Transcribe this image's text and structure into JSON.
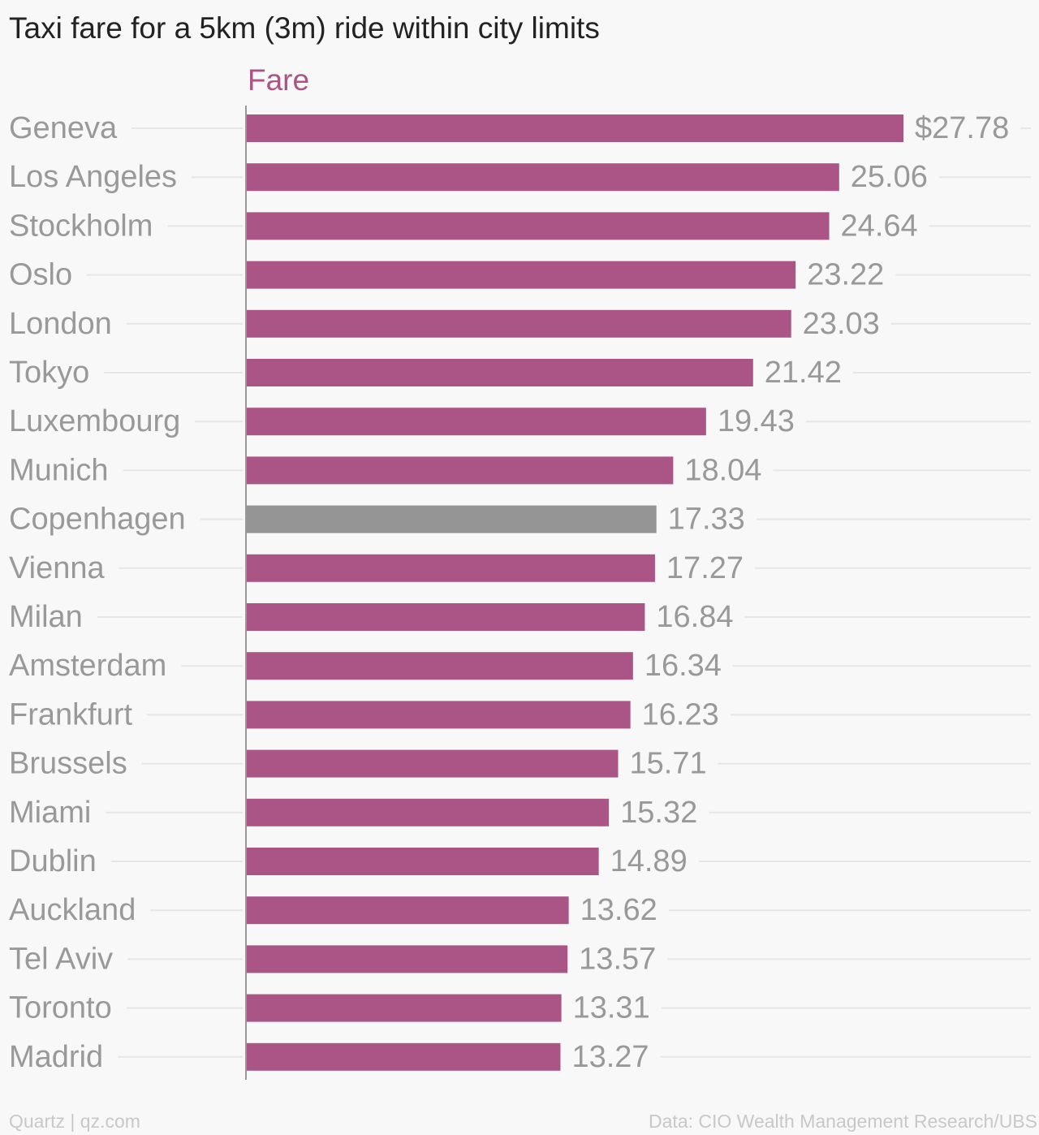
{
  "header": {
    "title": "Taxi fare for a 5km (3m) ride within city limits",
    "series_label": "Fare"
  },
  "footer": {
    "source_left": "Quartz | qz.com",
    "source_right": "Data: CIO Wealth Management Research/UBS"
  },
  "colors": {
    "bar": "#aa5585",
    "highlight_bar": "#959595",
    "label": "#999999",
    "title": "#222222",
    "grid": "#e6e6e6",
    "axis": "#999999"
  },
  "chart_data": {
    "type": "bar",
    "orientation": "horizontal",
    "title": "Taxi fare for a 5km (3m) ride within city limits",
    "categories": [
      "Geneva",
      "Los Angeles",
      "Stockholm",
      "Oslo",
      "London",
      "Tokyo",
      "Luxembourg",
      "Munich",
      "Copenhagen",
      "Vienna",
      "Milan",
      "Amsterdam",
      "Frankfurt",
      "Brussels",
      "Miami",
      "Dublin",
      "Auckland",
      "Tel Aviv",
      "Toronto",
      "Madrid"
    ],
    "series": [
      {
        "name": "Fare",
        "values": [
          27.78,
          25.06,
          24.64,
          23.22,
          23.03,
          21.42,
          19.43,
          18.04,
          17.33,
          17.27,
          16.84,
          16.34,
          16.23,
          15.71,
          15.32,
          14.89,
          13.62,
          13.57,
          13.31,
          13.27
        ]
      }
    ],
    "value_labels": [
      "$27.78",
      "25.06",
      "24.64",
      "23.22",
      "23.03",
      "21.42",
      "19.43",
      "18.04",
      "17.33",
      "17.27",
      "16.84",
      "16.34",
      "16.23",
      "15.71",
      "15.32",
      "14.89",
      "13.62",
      "13.57",
      "13.31",
      "13.27"
    ],
    "highlighted": [
      "Copenhagen"
    ],
    "xlim": [
      0,
      27.78
    ],
    "grid": true,
    "legend": "top-left"
  }
}
